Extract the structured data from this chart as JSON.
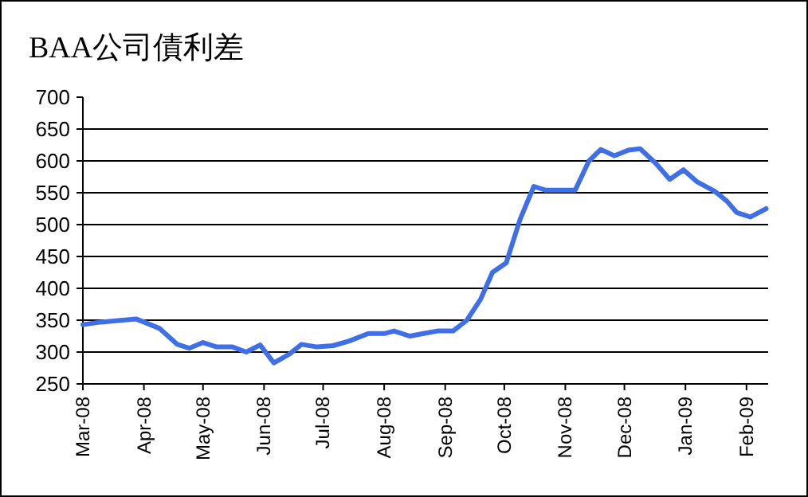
{
  "chart_data": {
    "type": "line",
    "title": "BAA公司債利差",
    "x": [
      "2008-03-01",
      "2008-03-10",
      "2008-03-28",
      "2008-04-09",
      "2008-04-18",
      "2008-04-24",
      "2008-05-01",
      "2008-05-08",
      "2008-05-16",
      "2008-05-23",
      "2008-05-30",
      "2008-06-06",
      "2008-06-14",
      "2008-06-20",
      "2008-06-28",
      "2008-07-06",
      "2008-07-14",
      "2008-07-24",
      "2008-08-01",
      "2008-08-06",
      "2008-08-14",
      "2008-08-21",
      "2008-08-28",
      "2008-09-05",
      "2008-09-12",
      "2008-09-19",
      "2008-09-25",
      "2008-10-02",
      "2008-10-09",
      "2008-10-16",
      "2008-10-22",
      "2008-11-06",
      "2008-11-13",
      "2008-11-19",
      "2008-11-26",
      "2008-12-03",
      "2008-12-09",
      "2008-12-17",
      "2008-12-24",
      "2008-12-31",
      "2009-01-07",
      "2009-01-16",
      "2009-01-22",
      "2009-01-27",
      "2009-02-03",
      "2009-02-11"
    ],
    "series": [
      {
        "color": "#3f6fe6",
        "values": [
          343,
          347,
          352,
          337,
          312,
          306,
          315,
          308,
          308,
          300,
          311,
          283,
          297,
          312,
          308,
          310,
          317,
          329,
          329,
          333,
          325,
          329,
          333,
          333,
          350,
          383,
          425,
          440,
          508,
          560,
          554,
          554,
          600,
          618,
          608,
          617,
          619,
          596,
          571,
          586,
          567,
          552,
          537,
          519,
          512,
          525
        ]
      }
    ],
    "xlim": [
      "2008-03-01",
      "2009-02-12"
    ],
    "ylim": [
      250,
      700
    ],
    "xticks": [
      {
        "value": "2008-03-01",
        "label": "Mar-08"
      },
      {
        "value": "2008-04-01",
        "label": "Apr-08"
      },
      {
        "value": "2008-05-01",
        "label": "May-08"
      },
      {
        "value": "2008-06-01",
        "label": "Jun-08"
      },
      {
        "value": "2008-07-01",
        "label": "Jul-08"
      },
      {
        "value": "2008-08-01",
        "label": "Aug-08"
      },
      {
        "value": "2008-09-01",
        "label": "Sep-08"
      },
      {
        "value": "2008-10-01",
        "label": "Oct-08"
      },
      {
        "value": "2008-11-01",
        "label": "Nov-08"
      },
      {
        "value": "2008-12-01",
        "label": "Dec-08"
      },
      {
        "value": "2009-01-01",
        "label": "Jan-09"
      },
      {
        "value": "2009-02-01",
        "label": "Feb-09"
      }
    ],
    "yticks": [
      250,
      300,
      350,
      400,
      450,
      500,
      550,
      600,
      650,
      700
    ],
    "grid": "y"
  }
}
